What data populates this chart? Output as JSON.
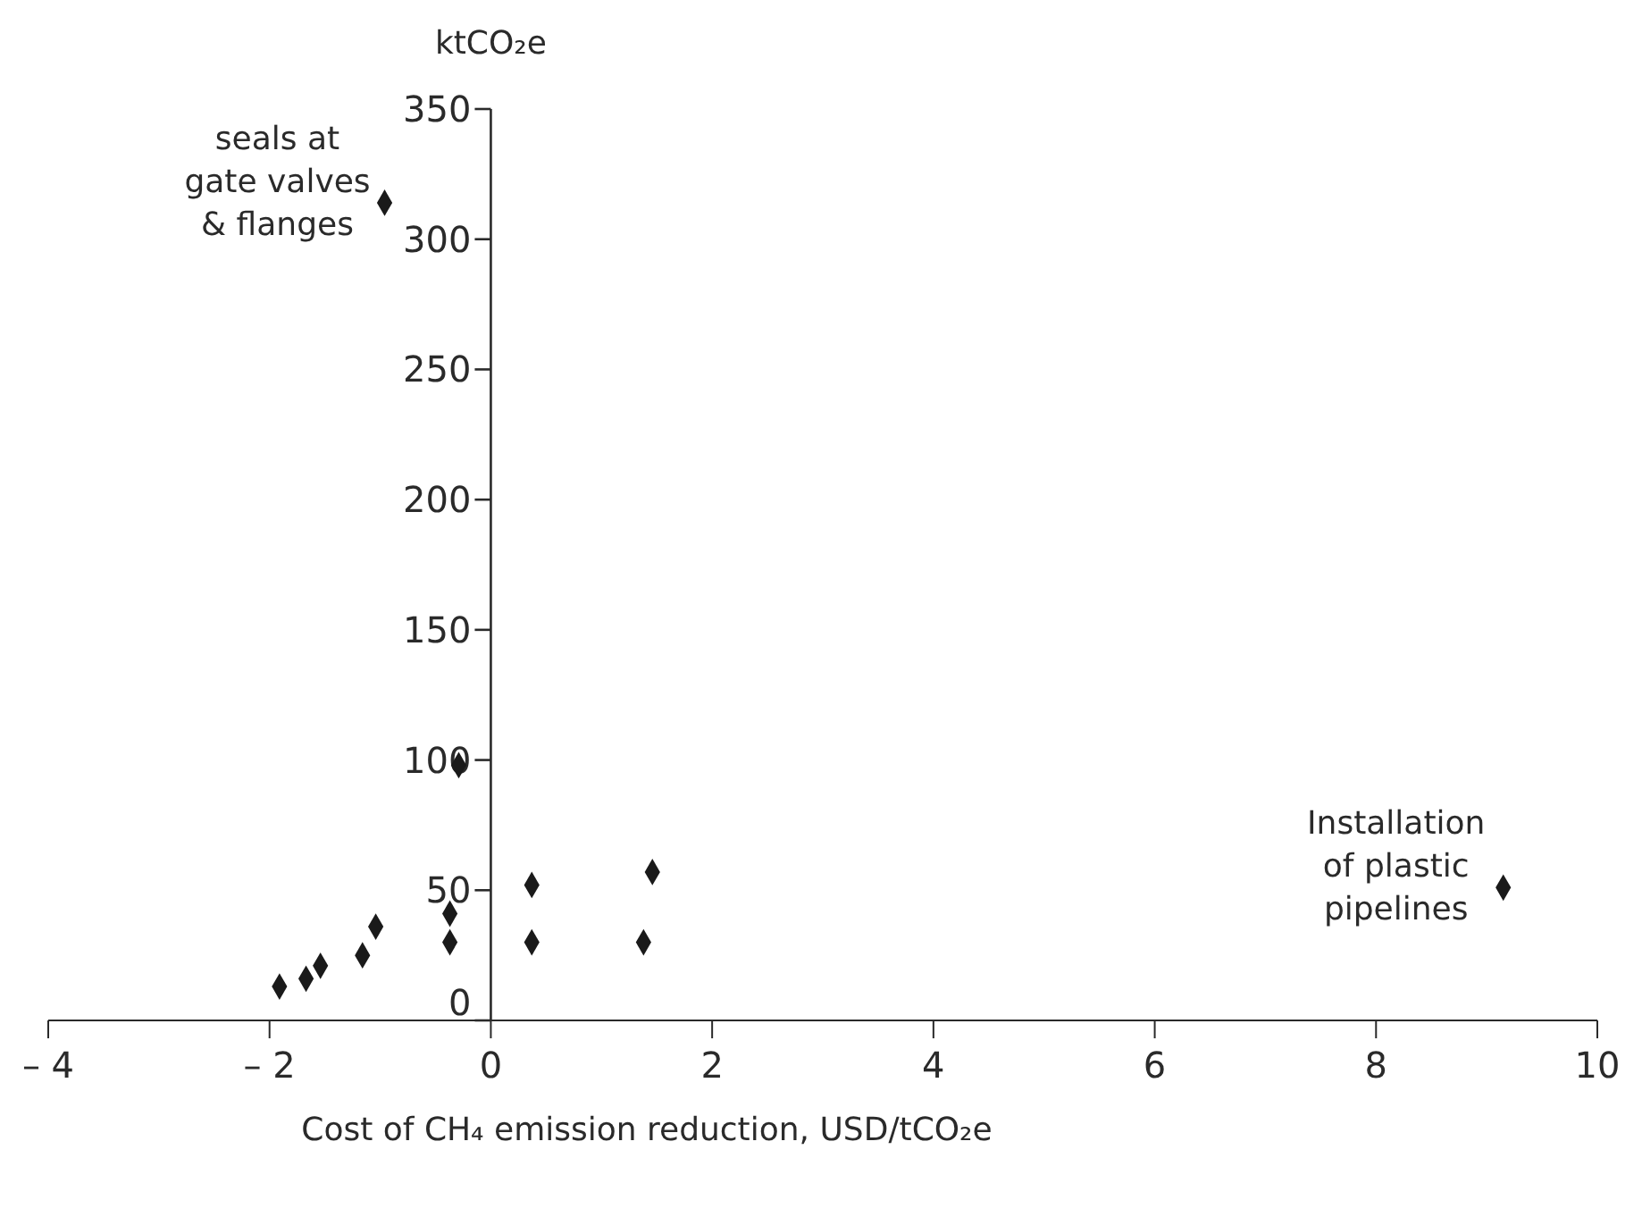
{
  "chart_data": {
    "type": "scatter",
    "xlabel": "Cost of CH₄ emission reduction, USD/tCO₂e",
    "ylabel": "ktCO₂e",
    "series": [
      {
        "color": "#1a1a1a",
        "x": [
          -1.91,
          -1.67,
          -1.54,
          -1.16,
          -1.04,
          -0.96,
          -0.29,
          -0.37,
          -0.37,
          0.37,
          0.37,
          1.38,
          1.46,
          9.15
        ],
        "values": [
          13,
          16,
          21,
          25,
          36,
          314,
          98,
          41,
          30,
          52,
          30,
          30,
          57,
          51
        ]
      }
    ],
    "xlim": [
      -4,
      10
    ],
    "xticks": [
      {
        "value": -4,
        "label": "– 4"
      },
      {
        "value": -2,
        "label": "– 2"
      },
      0,
      2,
      4,
      6,
      8,
      10
    ],
    "ylim": [
      0,
      350
    ],
    "yticks": [
      0,
      50,
      100,
      150,
      200,
      250,
      300,
      350
    ],
    "marker": "diamond",
    "grid": false,
    "legend": false,
    "annotations": [
      {
        "text": "seals at gate valves & flanges",
        "x": -0.96,
        "y": 314
      },
      {
        "text": "Installation of plastic pipelines",
        "x": 9.15,
        "y": 51
      }
    ]
  }
}
